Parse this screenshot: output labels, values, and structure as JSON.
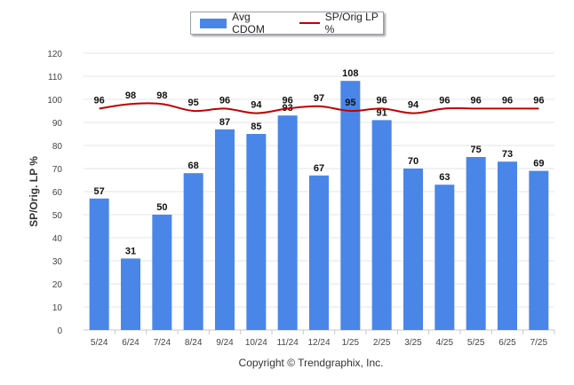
{
  "chart_data": {
    "type": "bar",
    "categories": [
      "5/24",
      "6/24",
      "7/24",
      "8/24",
      "9/24",
      "10/24",
      "11/24",
      "12/24",
      "1/25",
      "2/25",
      "3/25",
      "4/25",
      "5/25",
      "6/25",
      "7/25"
    ],
    "series": [
      {
        "name": "Avg CDOM",
        "type": "bar",
        "color": "#4a86e8",
        "values": [
          57,
          31,
          50,
          68,
          87,
          85,
          93,
          67,
          108,
          91,
          70,
          63,
          75,
          73,
          69
        ]
      },
      {
        "name": "SP/Orig LP %",
        "type": "line",
        "color": "#c00000",
        "values": [
          96,
          98,
          98,
          95,
          96,
          94,
          96,
          97,
          95,
          96,
          94,
          96,
          96,
          96,
          96
        ]
      }
    ],
    "ylabel": "SP/Orig. LP %",
    "ylim": [
      0,
      120
    ],
    "yticks": [
      0,
      10,
      20,
      30,
      40,
      50,
      60,
      70,
      80,
      90,
      100,
      110,
      120
    ],
    "grid": true,
    "legend": "top-center"
  },
  "legend": {
    "bar_label": "Avg CDOM",
    "line_label": "SP/Orig LP %"
  },
  "footer": {
    "copyright": "Copyright © Trendgraphix, Inc."
  }
}
